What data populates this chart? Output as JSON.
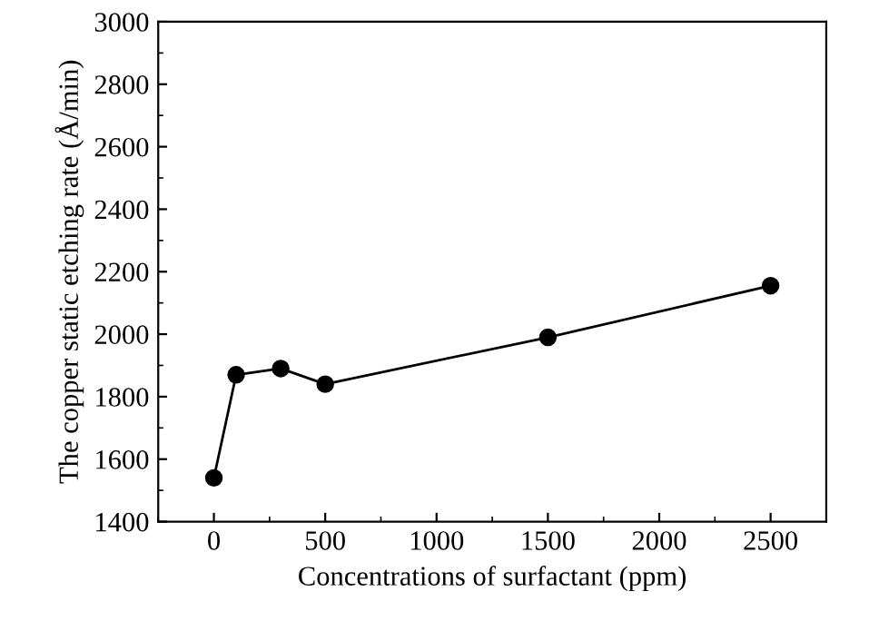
{
  "chart_data": {
    "type": "line",
    "xlabel": "Concentrations of surfactant (ppm)",
    "ylabel": "The copper static etching rate (Å/min)",
    "x": [
      0,
      100,
      300,
      500,
      1500,
      2500
    ],
    "series": [
      {
        "color": "#000000",
        "values": [
          1540,
          1870,
          1890,
          1840,
          1990,
          2155
        ]
      }
    ],
    "xlim": [
      -250,
      2750
    ],
    "xticks": [
      0,
      500,
      1000,
      1500,
      2000,
      2500
    ],
    "ylim": [
      1400,
      3000
    ],
    "yticks": [
      1400,
      1600,
      1800,
      2000,
      2200,
      2400,
      2600,
      2800,
      3000
    ],
    "marker": "circle",
    "line_style": "solid",
    "grid": false,
    "legend": false
  }
}
